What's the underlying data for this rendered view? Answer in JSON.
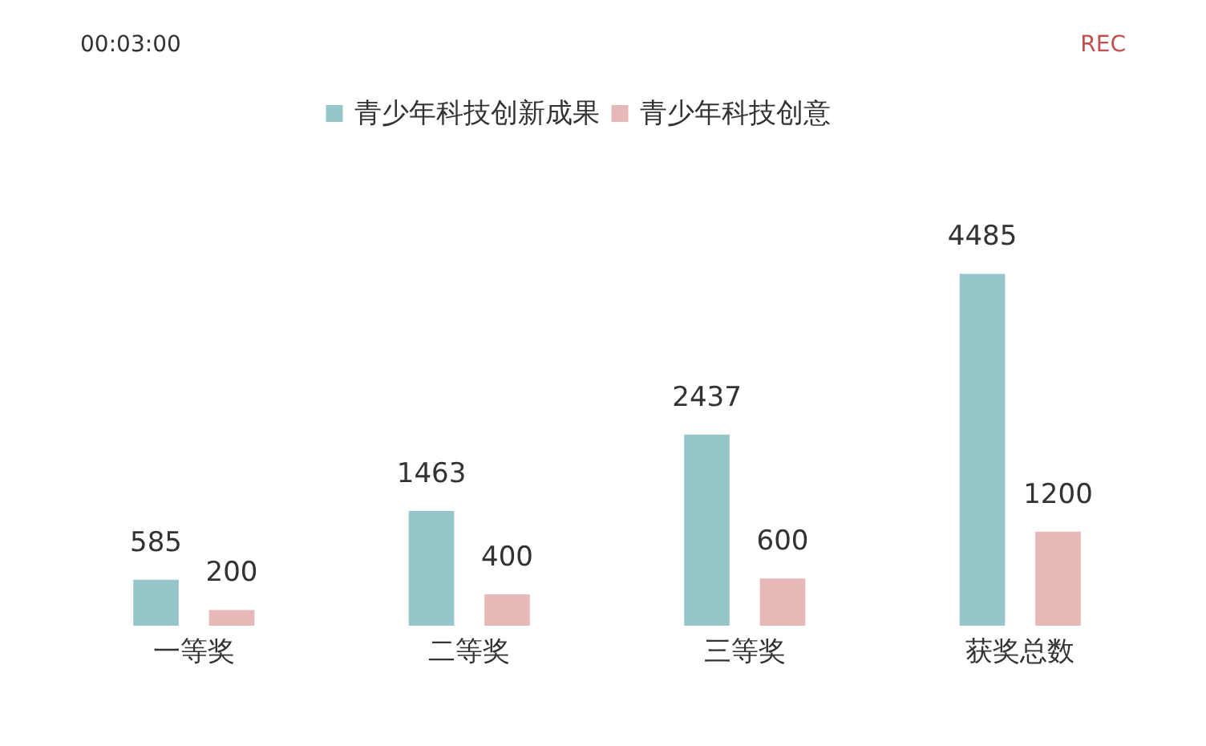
{
  "chart_data": {
    "type": "bar",
    "categories": [
      "一等奖",
      "二等奖",
      "三等奖",
      "获奖总数"
    ],
    "series": [
      {
        "name": "青少年科技创新成果",
        "color": "#96c6ca",
        "values": [
          585,
          1463,
          2437,
          4485
        ]
      },
      {
        "name": "青少年科技创意",
        "color": "#e6b9b8",
        "values": [
          200,
          400,
          600,
          1200
        ]
      }
    ],
    "data_labels": true,
    "legend": "top",
    "annotations": [
      "00:03:00",
      "REC"
    ]
  }
}
